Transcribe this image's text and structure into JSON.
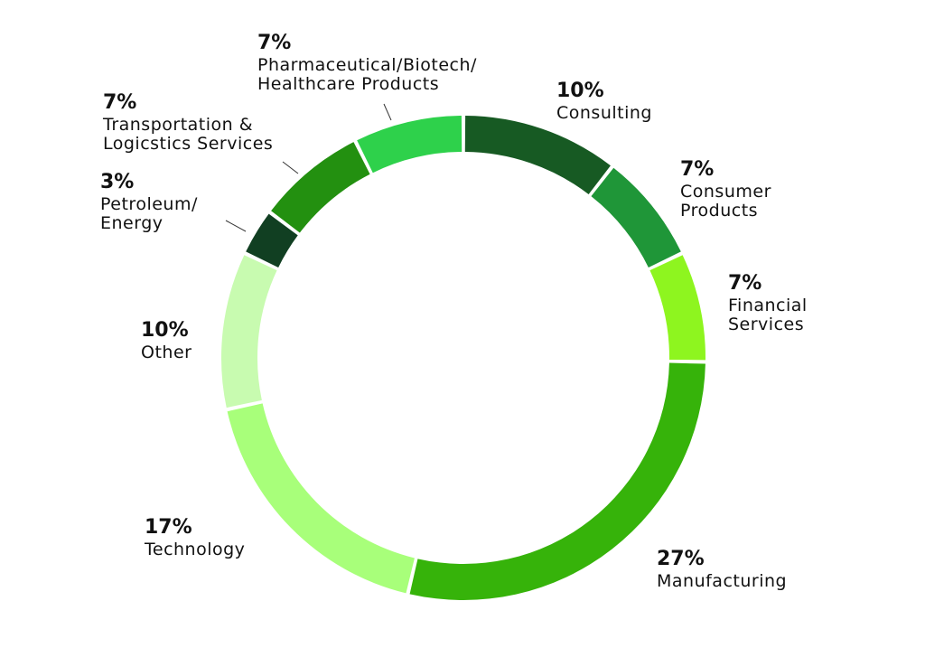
{
  "chart_data": {
    "type": "pie",
    "title": "",
    "series": [
      {
        "values": [
          10,
          7,
          7,
          27,
          17,
          10,
          3,
          7,
          7
        ],
        "categories": [
          "Consulting",
          "Consumer Products",
          "Financial Services",
          "Manufacturing",
          "Technology",
          "Other",
          "Petroleum/ Energy",
          "Transportation & Logicstics Services",
          "Pharmaceutical/Biotech/ Healthcare Products"
        ]
      }
    ],
    "slices": [
      {
        "label": "Consulting",
        "percent_label": "10%",
        "value": 10,
        "label_lines": [
          "Consulting"
        ],
        "color": "#175a23"
      },
      {
        "label": "Consumer Products",
        "percent_label": "7%",
        "value": 7,
        "label_lines": [
          "Consumer",
          "Products"
        ],
        "color": "#1f9638"
      },
      {
        "label": "Financial Services",
        "percent_label": "7%",
        "value": 7,
        "label_lines": [
          "Financial",
          "Services"
        ],
        "color": "#8ef51f"
      },
      {
        "label": "Manufacturing",
        "percent_label": "27%",
        "value": 27,
        "label_lines": [
          "Manufacturing"
        ],
        "color": "#36b30a"
      },
      {
        "label": "Technology",
        "percent_label": "17%",
        "value": 17,
        "label_lines": [
          "Technology"
        ],
        "color": "#a8ff7a"
      },
      {
        "label": "Other",
        "percent_label": "10%",
        "value": 10,
        "label_lines": [
          "Other"
        ],
        "color": "#c8fbb0"
      },
      {
        "label": "Petroleum/ Energy",
        "percent_label": "3%",
        "value": 3,
        "label_lines": [
          "Petroleum/",
          "Energy"
        ],
        "color": "#113f22"
      },
      {
        "label": "Transportation & Logicstics Services",
        "percent_label": "7%",
        "value": 7,
        "label_lines": [
          "Transportation &",
          "Logicstics Services"
        ],
        "color": "#239010"
      },
      {
        "label": "Pharmaceutical/Biotech/ Healthcare Products",
        "percent_label": "7%",
        "value": 7,
        "label_lines": [
          "Pharmaceutical/Biotech/",
          "Healthcare Products"
        ],
        "color": "#2ed14b"
      }
    ],
    "donut": true,
    "legend": "none"
  }
}
